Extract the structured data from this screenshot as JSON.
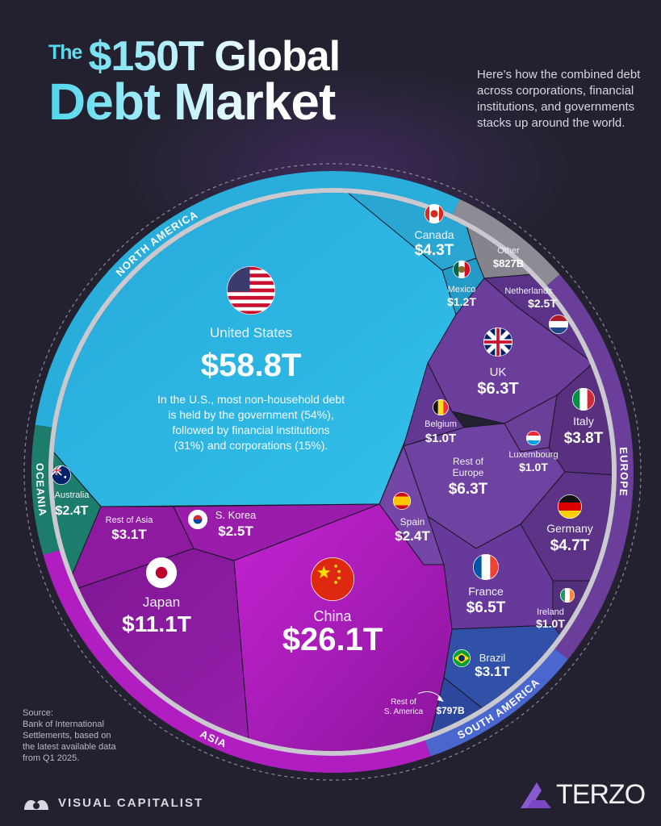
{
  "header": {
    "title_the": "The",
    "title_line1": "$150T Global",
    "title_line2": "Debt Market",
    "subtitle": "Here’s how the combined debt across corporations, financial institutions, and governments stacks up around the world."
  },
  "footer": {
    "source_lines": [
      "Source:",
      "Bank of International",
      "Settlements, based on",
      "the latest available data",
      "from Q1 2025."
    ],
    "brand_left": "VISUAL CAPITALIST",
    "brand_right": "TERZO"
  },
  "colors": {
    "background": "#23212f",
    "north_america": "#2bb3df",
    "other": "#8d8c94",
    "europe": "#6b3e9c",
    "south_america": "#3150a8",
    "asia": "#b01dc0",
    "oceania": "#1c7d6c"
  },
  "chart_data": {
    "type": "treemap",
    "title": "The $150T Global Debt Market",
    "total": "$150T",
    "unit": "trillion USD",
    "regions": [
      {
        "name": "NORTH AMERICA",
        "color": "#2bb3df"
      },
      {
        "name": "EUROPE",
        "color": "#6b3e9c"
      },
      {
        "name": "SOUTH AMERICA",
        "color": "#4a67d0"
      },
      {
        "name": "ASIA",
        "color": "#b01dc0"
      },
      {
        "name": "OCEANIA",
        "color": "#1c7d6c"
      }
    ],
    "cells": [
      {
        "name_lines": [
          "United States"
        ],
        "value_label": "$58.8T",
        "value": 58.8,
        "region": "North America",
        "flag": "us-flag-icon",
        "note_lines": [
          "In the U.S., most non-household debt",
          "is held by the government (54%),",
          "followed by financial institutions",
          "(31%) and corporations (15%)."
        ]
      },
      {
        "name_lines": [
          "Canada"
        ],
        "value_label": "$4.3T",
        "value": 4.3,
        "region": "North America",
        "flag": "canada-flag-icon"
      },
      {
        "name_lines": [
          "Mexico"
        ],
        "value_label": "$1.2T",
        "value": 1.2,
        "region": "North America",
        "flag": "mexico-flag-icon"
      },
      {
        "name_lines": [
          "Other"
        ],
        "value_label": "$827B",
        "value": 0.827,
        "region": "Other",
        "flag": ""
      },
      {
        "name_lines": [
          "Netherlands"
        ],
        "value_label": "$2.5T",
        "value": 2.5,
        "region": "Europe",
        "flag": "netherlands-flag-icon"
      },
      {
        "name_lines": [
          "UK"
        ],
        "value_label": "$6.3T",
        "value": 6.3,
        "region": "Europe",
        "flag": "uk-flag-icon"
      },
      {
        "name_lines": [
          "Belgium"
        ],
        "value_label": "$1.0T",
        "value": 1.0,
        "region": "Europe",
        "flag": "belgium-flag-icon"
      },
      {
        "name_lines": [
          "Italy"
        ],
        "value_label": "$3.8T",
        "value": 3.8,
        "region": "Europe",
        "flag": "italy-flag-icon"
      },
      {
        "name_lines": [
          "Luxembourg"
        ],
        "value_label": "$1.0T",
        "value": 1.0,
        "region": "Europe",
        "flag": "luxembourg-flag-icon"
      },
      {
        "name_lines": [
          "Rest of",
          "Europe"
        ],
        "value_label": "$6.3T",
        "value": 6.3,
        "region": "Europe",
        "flag": ""
      },
      {
        "name_lines": [
          "Spain"
        ],
        "value_label": "$2.4T",
        "value": 2.4,
        "region": "Europe",
        "flag": "spain-flag-icon"
      },
      {
        "name_lines": [
          "Germany"
        ],
        "value_label": "$4.7T",
        "value": 4.7,
        "region": "Europe",
        "flag": "germany-flag-icon"
      },
      {
        "name_lines": [
          "France"
        ],
        "value_label": "$6.5T",
        "value": 6.5,
        "region": "Europe",
        "flag": "france-flag-icon"
      },
      {
        "name_lines": [
          "Ireland"
        ],
        "value_label": "$1.0T",
        "value": 1.0,
        "region": "Europe",
        "flag": "ireland-flag-icon"
      },
      {
        "name_lines": [
          "Brazil"
        ],
        "value_label": "$3.1T",
        "value": 3.1,
        "region": "South America",
        "flag": "brazil-flag-icon"
      },
      {
        "name_lines": [
          "Rest of",
          "S. America"
        ],
        "value_label": "$797B",
        "value": 0.797,
        "region": "South America",
        "flag": ""
      },
      {
        "name_lines": [
          "Australia"
        ],
        "value_label": "$2.4T",
        "value": 2.4,
        "region": "Oceania",
        "flag": "australia-flag-icon"
      },
      {
        "name_lines": [
          "Rest of Asia"
        ],
        "value_label": "$3.1T",
        "value": 3.1,
        "region": "Asia",
        "flag": ""
      },
      {
        "name_lines": [
          "S. Korea"
        ],
        "value_label": "$2.5T",
        "value": 2.5,
        "region": "Asia",
        "flag": "south-korea-flag-icon"
      },
      {
        "name_lines": [
          "Japan"
        ],
        "value_label": "$11.1T",
        "value": 11.1,
        "region": "Asia",
        "flag": "japan-flag-icon"
      },
      {
        "name_lines": [
          "China"
        ],
        "value_label": "$26.1T",
        "value": 26.1,
        "region": "Asia",
        "flag": "china-flag-icon"
      }
    ]
  }
}
